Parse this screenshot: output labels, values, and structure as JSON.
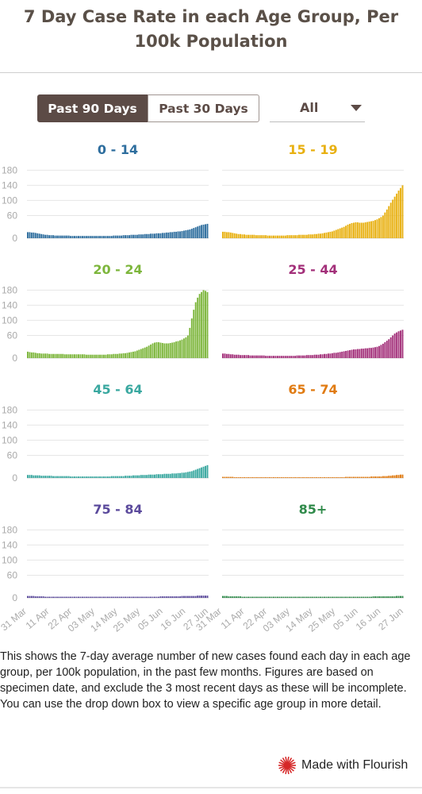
{
  "title": "7 Day Case Rate in each Age Group, Per 100k Population",
  "controls": {
    "buttons": [
      "Past 90 Days",
      "Past 30 Days"
    ],
    "active_button": "Past 90 Days",
    "dropdown_value": "All"
  },
  "colors": {
    "active_button_bg": "#5c4b46",
    "grid": "#e6e6e6",
    "axis_text": "#aaaaaa",
    "flourish_logo": "#d62828"
  },
  "chart_data": {
    "type": "bar",
    "yticks": [
      0,
      60,
      100,
      140,
      180
    ],
    "ylim": [
      0,
      185
    ],
    "grid": true,
    "xticks": [
      "31 Mar",
      "11 Apr",
      "22 Apr",
      "03 May",
      "14 May",
      "25 May",
      "05 Jun",
      "16 Jun",
      "27 Jun"
    ],
    "series": [
      {
        "name": "0 - 14",
        "color": "#2e6e9e",
        "values": [
          16,
          16,
          15,
          15,
          14,
          13,
          12,
          11,
          10,
          9,
          9,
          8,
          8,
          8,
          7,
          7,
          7,
          7,
          7,
          7,
          7,
          7,
          6,
          6,
          6,
          6,
          6,
          6,
          6,
          6,
          6,
          6,
          6,
          6,
          6,
          6,
          6,
          6,
          6,
          6,
          6,
          6,
          6,
          6,
          7,
          7,
          7,
          7,
          7,
          8,
          8,
          8,
          8,
          9,
          9,
          9,
          9,
          10,
          10,
          10,
          11,
          11,
          11,
          12,
          12,
          12,
          13,
          13,
          13,
          14,
          14,
          15,
          15,
          16,
          16,
          17,
          17,
          18,
          18,
          19,
          20,
          21,
          22,
          23,
          25,
          27,
          29,
          31,
          33,
          35,
          36,
          37,
          38
        ]
      },
      {
        "name": "15 - 19",
        "color": "#e8b010",
        "values": [
          17,
          17,
          16,
          16,
          15,
          14,
          13,
          12,
          11,
          11,
          10,
          10,
          9,
          9,
          9,
          9,
          9,
          8,
          8,
          8,
          8,
          8,
          8,
          7,
          7,
          7,
          7,
          7,
          7,
          7,
          7,
          7,
          7,
          8,
          8,
          8,
          8,
          8,
          8,
          9,
          9,
          9,
          9,
          9,
          10,
          10,
          10,
          11,
          11,
          12,
          12,
          13,
          14,
          15,
          16,
          17,
          18,
          20,
          22,
          24,
          26,
          28,
          30,
          33,
          36,
          38,
          40,
          41,
          42,
          42,
          41,
          41,
          41,
          42,
          43,
          44,
          45,
          46,
          48,
          50,
          53,
          56,
          60,
          68,
          76,
          85,
          94,
          102,
          110,
          118,
          126,
          133,
          140
        ]
      },
      {
        "name": "20 - 24",
        "color": "#7db63c",
        "values": [
          17,
          16,
          15,
          15,
          14,
          13,
          13,
          12,
          12,
          12,
          12,
          11,
          11,
          11,
          11,
          11,
          11,
          11,
          11,
          10,
          10,
          10,
          10,
          10,
          10,
          10,
          10,
          10,
          10,
          10,
          9,
          9,
          9,
          9,
          9,
          9,
          9,
          9,
          9,
          9,
          9,
          10,
          10,
          10,
          11,
          11,
          11,
          12,
          12,
          13,
          13,
          14,
          15,
          16,
          17,
          18,
          20,
          22,
          24,
          26,
          28,
          30,
          33,
          36,
          39,
          41,
          42,
          42,
          41,
          40,
          39,
          39,
          39,
          40,
          41,
          42,
          44,
          45,
          47,
          49,
          52,
          55,
          60,
          80,
          105,
          128,
          148,
          160,
          170,
          175,
          180,
          178,
          175
        ]
      },
      {
        "name": "25 - 44",
        "color": "#a3307a",
        "values": [
          12,
          12,
          11,
          11,
          10,
          10,
          9,
          9,
          9,
          8,
          8,
          8,
          8,
          8,
          7,
          7,
          7,
          7,
          7,
          7,
          7,
          7,
          6,
          6,
          6,
          6,
          6,
          6,
          6,
          6,
          6,
          6,
          6,
          6,
          6,
          6,
          6,
          6,
          7,
          7,
          7,
          7,
          7,
          8,
          8,
          8,
          8,
          9,
          9,
          9,
          10,
          10,
          11,
          11,
          12,
          12,
          13,
          14,
          14,
          15,
          16,
          17,
          18,
          19,
          20,
          21,
          22,
          23,
          23,
          24,
          24,
          25,
          25,
          26,
          26,
          27,
          27,
          28,
          29,
          30,
          32,
          35,
          38,
          42,
          46,
          50,
          55,
          60,
          65,
          68,
          71,
          73,
          75
        ]
      },
      {
        "name": "45 - 64",
        "color": "#3aa8a0",
        "values": [
          8,
          8,
          8,
          7,
          7,
          7,
          7,
          6,
          6,
          6,
          6,
          6,
          6,
          5,
          5,
          5,
          5,
          5,
          5,
          5,
          5,
          5,
          4,
          4,
          4,
          4,
          4,
          4,
          4,
          4,
          4,
          4,
          4,
          4,
          4,
          4,
          4,
          4,
          4,
          4,
          4,
          4,
          4,
          5,
          5,
          5,
          5,
          5,
          5,
          5,
          6,
          6,
          6,
          6,
          7,
          7,
          7,
          7,
          8,
          8,
          8,
          8,
          9,
          9,
          9,
          9,
          10,
          10,
          10,
          10,
          11,
          11,
          11,
          11,
          12,
          12,
          12,
          13,
          13,
          14,
          14,
          15,
          16,
          17,
          18,
          20,
          22,
          24,
          26,
          28,
          30,
          32,
          34
        ]
      },
      {
        "name": "65 - 74",
        "color": "#e07b12",
        "values": [
          3,
          3,
          3,
          3,
          3,
          3,
          2,
          2,
          2,
          2,
          2,
          2,
          2,
          2,
          2,
          2,
          2,
          2,
          2,
          2,
          2,
          2,
          2,
          2,
          2,
          2,
          2,
          2,
          2,
          2,
          2,
          2,
          2,
          2,
          2,
          2,
          2,
          2,
          2,
          2,
          2,
          2,
          2,
          2,
          2,
          2,
          2,
          2,
          2,
          2,
          2,
          2,
          2,
          2,
          2,
          2,
          2,
          2,
          2,
          2,
          2,
          2,
          2,
          3,
          3,
          3,
          3,
          3,
          3,
          3,
          3,
          3,
          3,
          3,
          3,
          3,
          4,
          4,
          4,
          4,
          4,
          4,
          5,
          5,
          5,
          6,
          6,
          7,
          7,
          8,
          8,
          9,
          9
        ]
      },
      {
        "name": "75 - 84",
        "color": "#5b4a9c",
        "values": [
          5,
          5,
          5,
          5,
          4,
          4,
          4,
          4,
          4,
          3,
          3,
          3,
          3,
          3,
          3,
          3,
          3,
          3,
          3,
          3,
          3,
          3,
          3,
          3,
          3,
          3,
          3,
          3,
          3,
          3,
          3,
          3,
          3,
          3,
          3,
          3,
          3,
          3,
          3,
          3,
          3,
          3,
          3,
          3,
          3,
          3,
          3,
          3,
          3,
          3,
          3,
          3,
          3,
          3,
          3,
          3,
          3,
          3,
          3,
          3,
          3,
          3,
          3,
          3,
          3,
          3,
          3,
          3,
          4,
          4,
          4,
          4,
          4,
          4,
          4,
          4,
          4,
          4,
          4,
          5,
          5,
          5,
          5,
          5,
          5,
          5,
          5,
          6,
          6,
          6,
          6,
          6,
          6
        ]
      },
      {
        "name": "85+",
        "color": "#2f8a4a",
        "values": [
          5,
          5,
          5,
          4,
          4,
          4,
          4,
          4,
          4,
          4,
          3,
          3,
          3,
          3,
          3,
          3,
          3,
          3,
          3,
          3,
          3,
          3,
          3,
          3,
          3,
          3,
          3,
          3,
          3,
          3,
          3,
          3,
          3,
          3,
          3,
          3,
          3,
          3,
          3,
          3,
          3,
          3,
          3,
          3,
          3,
          3,
          3,
          3,
          3,
          3,
          3,
          3,
          3,
          3,
          3,
          3,
          3,
          3,
          3,
          3,
          3,
          3,
          3,
          3,
          3,
          3,
          3,
          3,
          3,
          3,
          3,
          3,
          3,
          3,
          3,
          3,
          3,
          4,
          4,
          4,
          4,
          4,
          4,
          4,
          4,
          4,
          4,
          4,
          4,
          5,
          5,
          5,
          5
        ]
      }
    ]
  },
  "description": "This shows the 7-day average number of new cases found each day in each age group, per 100k population, in the past few months. Figures are based on specimen date, and exclude the 3 most recent days as these will be incomplete. You can use the drop down box to view a specific age group in more detail.",
  "footer": {
    "brand": "Made with Flourish"
  }
}
